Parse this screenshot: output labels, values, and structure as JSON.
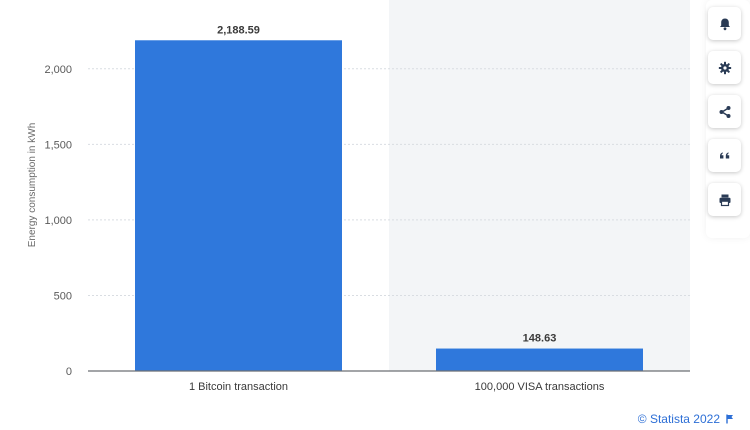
{
  "chart_data": {
    "type": "bar",
    "categories": [
      "1 Bitcoin transaction",
      "100,000 VISA transactions"
    ],
    "values": [
      2188.59,
      148.63
    ],
    "data_labels": [
      "2,188.59",
      "148.63"
    ],
    "title": "",
    "xlabel": "",
    "ylabel": "Energy consumption in kWh",
    "ylim": [
      0,
      2250
    ],
    "yticks": [
      0,
      500,
      1000,
      1500,
      2000
    ],
    "ytick_labels": [
      "0",
      "500",
      "1,000",
      "1,500",
      "2,000"
    ],
    "grid": true,
    "bar_color": "#2f78dc",
    "highlight_region_color": "#f3f5f7"
  },
  "toolbar": {
    "items": [
      {
        "name": "notification-bell-icon"
      },
      {
        "name": "settings-gear-icon"
      },
      {
        "name": "share-icon"
      },
      {
        "name": "cite-quote-icon"
      },
      {
        "name": "print-icon"
      }
    ]
  },
  "footer": {
    "copyright": "© Statista 2022",
    "flag_icon": "flag-icon"
  }
}
